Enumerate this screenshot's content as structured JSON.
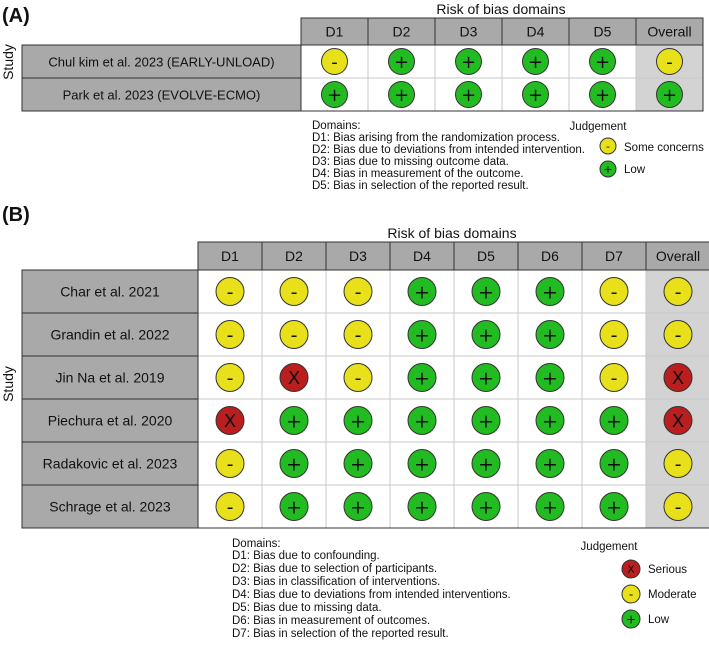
{
  "panelA": {
    "label": "(A)",
    "title": "Risk of bias domains",
    "study_axis_label": "Study",
    "domains": [
      "D1",
      "D2",
      "D3",
      "D4",
      "D5",
      "Overall"
    ],
    "studies": [
      {
        "name": "Chul kim et al. 2023  (EARLY-UNLOAD)",
        "judgements": [
          "some",
          "low",
          "low",
          "low",
          "low",
          "some"
        ]
      },
      {
        "name": "Park et al. 2023 (EVOLVE-ECMO)",
        "judgements": [
          "low",
          "low",
          "low",
          "low",
          "low",
          "low"
        ]
      }
    ],
    "legend_domains_title": "Domains:",
    "domain_descriptions": [
      "D1: Bias arising from the randomization process.",
      "D2: Bias due to deviations from intended intervention.",
      "D3: Bias due to missing outcome data.",
      "D4: Bias in measurement of the outcome.",
      "D5: Bias in selection of the reported result."
    ],
    "judgement_title": "Judgement",
    "judgement_keys": [
      {
        "type": "some",
        "label": "Some concerns"
      },
      {
        "type": "low",
        "label": "Low"
      }
    ]
  },
  "panelB": {
    "label": "(B)",
    "title": "Risk of bias domains",
    "study_axis_label": "Study",
    "domains": [
      "D1",
      "D2",
      "D3",
      "D4",
      "D5",
      "D6",
      "D7",
      "Overall"
    ],
    "studies": [
      {
        "name": "Char et al. 2021",
        "judgements": [
          "moderate",
          "moderate",
          "moderate",
          "low",
          "low",
          "low",
          "moderate",
          "moderate"
        ]
      },
      {
        "name": "Grandin et al. 2022",
        "judgements": [
          "moderate",
          "moderate",
          "moderate",
          "low",
          "low",
          "low",
          "moderate",
          "moderate"
        ]
      },
      {
        "name": "Jin Na et al. 2019",
        "judgements": [
          "moderate",
          "serious",
          "moderate",
          "low",
          "low",
          "low",
          "moderate",
          "serious"
        ]
      },
      {
        "name": "Piechura et al. 2020",
        "judgements": [
          "serious",
          "low",
          "low",
          "low",
          "low",
          "low",
          "low",
          "serious"
        ]
      },
      {
        "name": "Radakovic et al. 2023",
        "judgements": [
          "moderate",
          "low",
          "low",
          "low",
          "low",
          "low",
          "low",
          "moderate"
        ]
      },
      {
        "name": "Schrage et al. 2023",
        "judgements": [
          "moderate",
          "low",
          "low",
          "low",
          "low",
          "low",
          "low",
          "moderate"
        ]
      }
    ],
    "legend_domains_title": "Domains:",
    "domain_descriptions": [
      "D1: Bias due to confounding.",
      "D2: Bias due to selection of participants.",
      "D3: Bias in classification of interventions.",
      "D4: Bias due to deviations from intended interventions.",
      "D5: Bias due to missing data.",
      "D6: Bias in measurement of outcomes.",
      "D7: Bias in selection of the reported result."
    ],
    "judgement_title": "Judgement",
    "judgement_keys": [
      {
        "type": "serious",
        "label": "Serious"
      },
      {
        "type": "moderate",
        "label": "Moderate"
      },
      {
        "type": "low",
        "label": "Low"
      }
    ]
  },
  "symbols": {
    "low": {
      "glyph": "+",
      "fill": "#22bb22"
    },
    "some": {
      "glyph": "-",
      "fill": "#e8e01a"
    },
    "moderate": {
      "glyph": "-",
      "fill": "#e8e01a"
    },
    "serious": {
      "glyph": "X",
      "fill": "#bb1e1e"
    }
  },
  "colors": {
    "header_bg": "#a9a9a9",
    "study_bg": "#a9a9a9",
    "overall_col_bg": "#d3d3d3",
    "grid_line": "#c8c8c8",
    "border": "#333333"
  }
}
